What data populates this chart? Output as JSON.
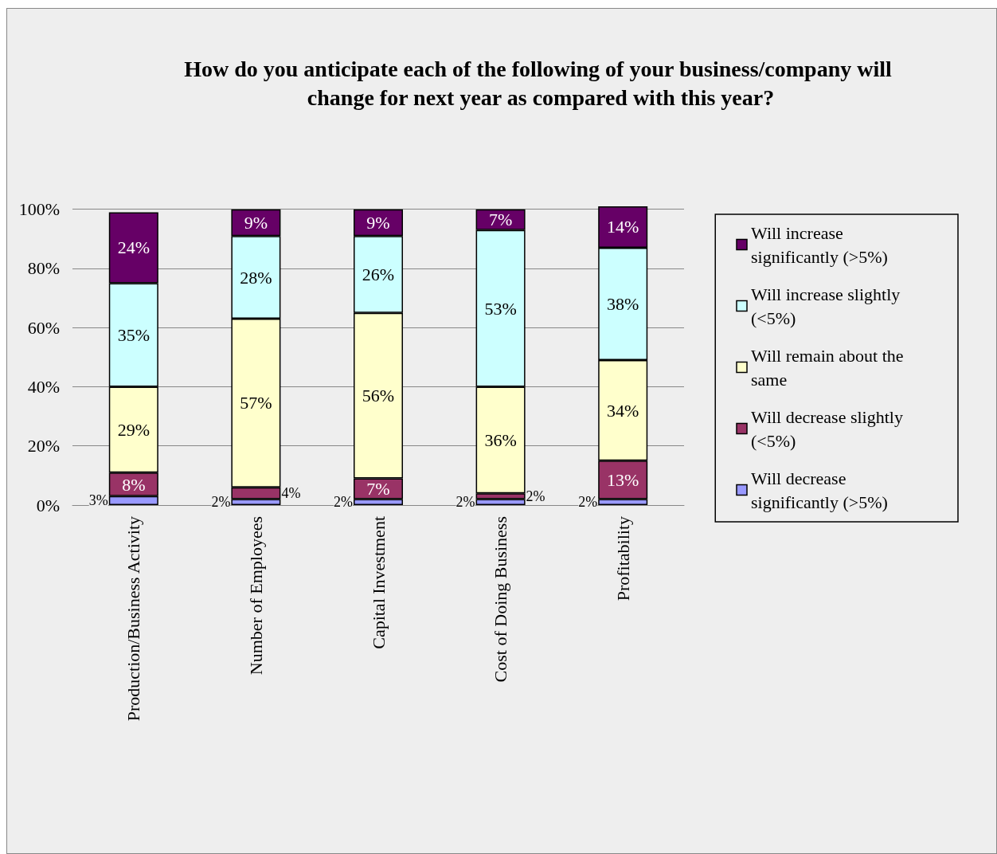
{
  "chart_data": {
    "type": "bar",
    "title": "How do you anticipate each of the following of your business/company will change for next year as compared with this year?",
    "categories": [
      "Production/Business Activity",
      "Number of Employees",
      "Capital Investment",
      "Cost of Doing Business",
      "Profitability"
    ],
    "stacked": true,
    "series": [
      {
        "name": "Will decrease significantly (>5%)",
        "color": "#9999ff",
        "values": [
          3,
          2,
          2,
          2,
          2
        ],
        "value_labels": [
          "3%",
          "2%",
          "2%",
          "2%",
          "2%"
        ]
      },
      {
        "name": "Will decrease slightly (<5%)",
        "color": "#993366",
        "values": [
          8,
          4,
          7,
          2,
          13
        ],
        "value_labels": [
          "8%",
          "4%",
          "7%",
          "2%",
          "13%"
        ]
      },
      {
        "name": "Will remain about the same",
        "color": "#ffffcc",
        "values": [
          29,
          57,
          56,
          36,
          34
        ],
        "value_labels": [
          "29%",
          "57%",
          "56%",
          "36%",
          "34%"
        ]
      },
      {
        "name": "Will increase slightly (<5%)",
        "color": "#ccffff",
        "values": [
          35,
          28,
          26,
          53,
          38
        ],
        "value_labels": [
          "35%",
          "28%",
          "26%",
          "53%",
          "38%"
        ]
      },
      {
        "name": "Will increase significantly (>5%)",
        "color": "#660066",
        "values": [
          24,
          9,
          9,
          7,
          14
        ],
        "value_labels": [
          "24%",
          "9%",
          "9%",
          "7%",
          "14%"
        ]
      }
    ],
    "ylim": [
      0,
      101
    ],
    "yticks": [
      {
        "value": 0,
        "label": "0%"
      },
      {
        "value": 20,
        "label": "20%"
      },
      {
        "value": 40,
        "label": "40%"
      },
      {
        "value": 60,
        "label": "60%"
      },
      {
        "value": 80,
        "label": "80%"
      },
      {
        "value": 100,
        "label": "100%"
      }
    ],
    "grid": "y",
    "legend": "right"
  }
}
